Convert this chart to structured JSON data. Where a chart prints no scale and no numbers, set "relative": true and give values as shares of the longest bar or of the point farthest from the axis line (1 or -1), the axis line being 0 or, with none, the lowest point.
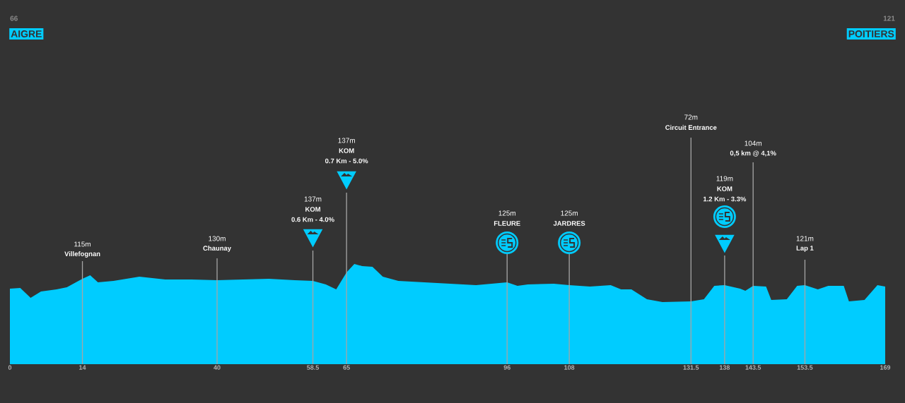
{
  "chart_data": {
    "type": "area",
    "relative": true,
    "color": "#00ccff",
    "x": [
      0,
      2,
      4,
      6,
      9,
      11,
      14,
      15.5,
      17,
      20,
      25,
      30,
      35,
      40,
      45,
      50,
      55,
      58.5,
      61,
      63,
      64,
      65,
      66.5,
      68,
      70,
      72,
      75,
      80,
      85,
      90,
      96,
      98,
      100,
      105,
      108,
      112,
      116,
      118,
      120,
      123,
      126,
      131.5,
      134,
      136,
      138,
      141,
      142,
      143.5,
      146,
      147,
      150,
      152,
      153.5,
      156,
      158,
      161,
      162,
      165,
      167.5,
      169
    ],
    "values": [
      0.754,
      0.761,
      0.662,
      0.725,
      0.746,
      0.768,
      0.852,
      0.887,
      0.817,
      0.831,
      0.873,
      0.845,
      0.845,
      0.838,
      0.845,
      0.852,
      0.838,
      0.831,
      0.796,
      0.746,
      0.831,
      0.915,
      1.0,
      0.979,
      0.972,
      0.873,
      0.831,
      0.817,
      0.803,
      0.789,
      0.817,
      0.782,
      0.796,
      0.803,
      0.789,
      0.775,
      0.789,
      0.746,
      0.746,
      0.648,
      0.62,
      0.627,
      0.648,
      0.782,
      0.789,
      0.754,
      0.732,
      0.782,
      0.775,
      0.641,
      0.648,
      0.782,
      0.789,
      0.746,
      0.782,
      0.782,
      0.627,
      0.641,
      0.789,
      0.775
    ],
    "xlim": [
      0,
      169
    ],
    "xticks": [
      0,
      14,
      40,
      58.5,
      65,
      96,
      108,
      131.5,
      138,
      143.5,
      153.5,
      169
    ],
    "ref_lines": [
      {
        "axis": "x",
        "value": 14,
        "color": "#a6a6a6"
      },
      {
        "axis": "x",
        "value": 40,
        "color": "#a6a6a6"
      },
      {
        "axis": "x",
        "value": 58.5,
        "color": "#a6a6a6"
      },
      {
        "axis": "x",
        "value": 65,
        "color": "#a6a6a6"
      },
      {
        "axis": "x",
        "value": 96,
        "color": "#a6a6a6"
      },
      {
        "axis": "x",
        "value": 108,
        "color": "#a6a6a6"
      },
      {
        "axis": "x",
        "value": 131.5,
        "color": "#a6a6a6"
      },
      {
        "axis": "x",
        "value": 138,
        "color": "#a6a6a6"
      },
      {
        "axis": "x",
        "value": 143.5,
        "color": "#a6a6a6"
      },
      {
        "axis": "x",
        "value": 153.5,
        "color": "#a6a6a6"
      }
    ],
    "annotations": [
      "66",
      "AIGRE",
      "121",
      "POITIERS",
      "115m",
      "Villefognan",
      "130m",
      "Chaunay",
      "137m",
      "KOM",
      "0.6 Km - 4.0%",
      "137m",
      "KOM",
      "0.7 Km - 5.0%",
      "125m",
      "FLEURE",
      "125m",
      "JARDRES",
      "72m",
      "Circuit Entrance",
      "119m",
      "KOM",
      "1.2 Km - 3.3%",
      "104m",
      "0,5 km @ 4,1%",
      "121m",
      "Lap 1"
    ]
  }
}
